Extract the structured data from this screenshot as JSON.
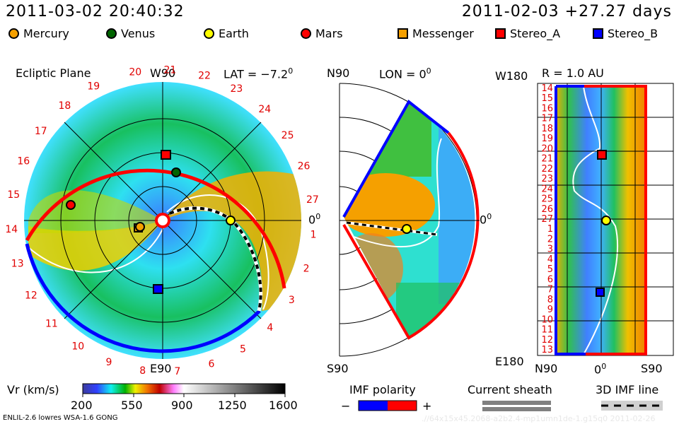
{
  "header": {
    "current_time": "2011-03-02 20:40:32",
    "reference": "2011-02-03 +27.27 days"
  },
  "legend": [
    {
      "name": "Mercury",
      "shape": "circle",
      "color": "#f5a000"
    },
    {
      "name": "Venus",
      "shape": "circle",
      "color": "#006400"
    },
    {
      "name": "Earth",
      "shape": "circle",
      "color": "#ffff00"
    },
    {
      "name": "Mars",
      "shape": "circle",
      "color": "#ff0000"
    },
    {
      "name": "Messenger",
      "shape": "square",
      "color": "#f5a000"
    },
    {
      "name": "Stereo_A",
      "shape": "square",
      "color": "#ff0000"
    },
    {
      "name": "Stereo_B",
      "shape": "square",
      "color": "#0000ff"
    }
  ],
  "ecliptic": {
    "title": "Ecliptic Plane",
    "top_label": "W90",
    "bottom_label": "E90",
    "right_label": "0",
    "right_label_sup": "0",
    "lat_label": "LAT = −7.2",
    "lat_sup": "0",
    "day_ticks": [
      "20",
      "21",
      "22",
      "23",
      "24",
      "25",
      "26",
      "27",
      "1",
      "2",
      "3",
      "4",
      "5",
      "6",
      "7",
      "8",
      "9",
      "10",
      "11",
      "12",
      "13",
      "14",
      "15",
      "16",
      "17",
      "18",
      "19"
    ]
  },
  "meridional": {
    "top_label": "N90",
    "bottom_label": "S90",
    "lon_label": "LON = 0",
    "lon_sup": "0",
    "right_label": "0",
    "right_label_sup": "0"
  },
  "radial": {
    "title": "R = 1.0 AU",
    "top_label": "W180",
    "bottom_label": "E180",
    "x_labels": [
      "N90",
      "0",
      "S90"
    ],
    "x_mid_sup": "0",
    "day_ticks": [
      "14",
      "15",
      "16",
      "17",
      "18",
      "19",
      "20",
      "21",
      "22",
      "23",
      "24",
      "25",
      "26",
      "27",
      "1",
      "2",
      "3",
      "4",
      "5",
      "6",
      "7",
      "8",
      "9",
      "10",
      "11",
      "12",
      "13"
    ]
  },
  "colorbar": {
    "label": "Vr (km/s)",
    "ticks": [
      "200",
      "550",
      "900",
      "1250",
      "1600"
    ]
  },
  "imf_polarity": {
    "label": "IMF polarity",
    "minus": "−",
    "plus": "+",
    "neg_color": "#0000ff",
    "pos_color": "#ff0000"
  },
  "current_sheath": {
    "label": "Current sheath"
  },
  "imf_line": {
    "label": "3D IMF line"
  },
  "footer": {
    "model": "ENLIL-2.6 lowres WSA-1.6 GONG",
    "run_id": ".//64x15x45.2068-a2b2.4-mp1umn1de-1.g15q0   2011-02-26"
  }
}
